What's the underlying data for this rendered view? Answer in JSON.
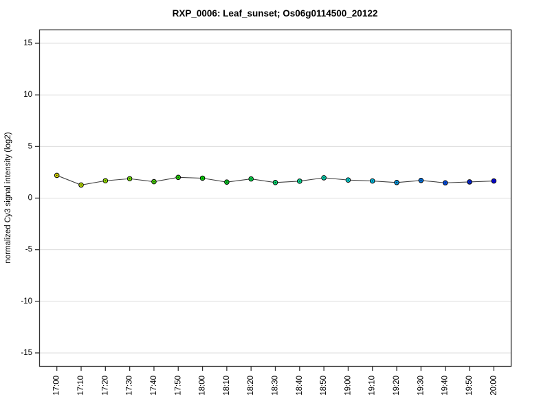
{
  "chart_data": {
    "type": "line",
    "title": "RXP_0006: Leaf_sunset; Os06g0114500_20122",
    "xlabel": "",
    "ylabel": "normalized Cy3 signal intensity (log2)",
    "ylim": [
      -16.3,
      16.3
    ],
    "yticks": [
      15,
      10,
      5,
      0,
      -5,
      -10,
      -15
    ],
    "grid": "horizontal-only",
    "gridline_color": "#dcdcdc",
    "frame_color": "#333333",
    "legend": "none",
    "categories": [
      "17:00",
      "17:10",
      "17:20",
      "17:30",
      "17:40",
      "17:50",
      "18:00",
      "18:10",
      "18:20",
      "18:30",
      "18:40",
      "18:50",
      "19:00",
      "19:10",
      "19:20",
      "19:30",
      "19:40",
      "19:50",
      "20:00"
    ],
    "series": [
      {
        "name": "Cy3 signal intensity",
        "values": [
          2.2,
          1.27,
          1.68,
          1.88,
          1.59,
          2.01,
          1.93,
          1.55,
          1.86,
          1.51,
          1.64,
          1.97,
          1.75,
          1.66,
          1.51,
          1.71,
          1.48,
          1.57,
          1.66
        ],
        "line_color": "#404040",
        "marker_outline_color": "#000000",
        "point_colors": [
          "#e0e000",
          "#bbe000",
          "#95e000",
          "#70e000",
          "#4be000",
          "#25e000",
          "#00e000",
          "#00e025",
          "#00e04b",
          "#00e070",
          "#00e095",
          "#00e0bb",
          "#00e0e0",
          "#00bbe0",
          "#0095e0",
          "#0070e0",
          "#004be0",
          "#0025e0",
          "#0000e0"
        ]
      }
    ]
  }
}
